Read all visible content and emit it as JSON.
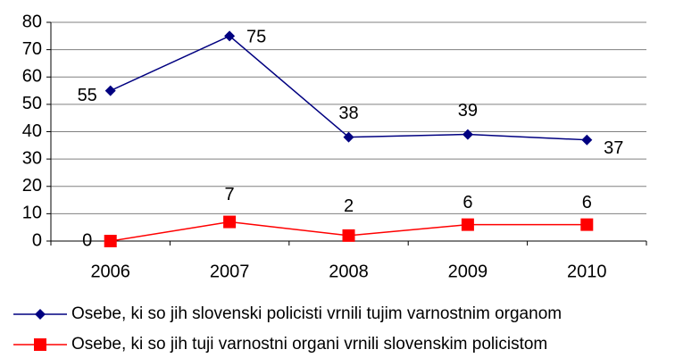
{
  "chart_data": {
    "type": "line",
    "categories": [
      "2006",
      "2007",
      "2008",
      "2009",
      "2010"
    ],
    "series": [
      {
        "name": "Osebe, ki so jih slovenski policisti vrnili tujim varnostnim organom",
        "color": "#000080",
        "marker": "diamond",
        "values": [
          55,
          75,
          38,
          39,
          37
        ]
      },
      {
        "name": "Osebe, ki so jih tuji varnostni organi vrnili slovenskim policistom",
        "color": "#ff0000",
        "marker": "square",
        "values": [
          0,
          7,
          2,
          6,
          6
        ]
      }
    ],
    "ylim": [
      0,
      80
    ],
    "yticks": [
      0,
      10,
      20,
      30,
      40,
      50,
      60,
      70,
      80
    ],
    "grid": true,
    "legend": "bottom"
  }
}
